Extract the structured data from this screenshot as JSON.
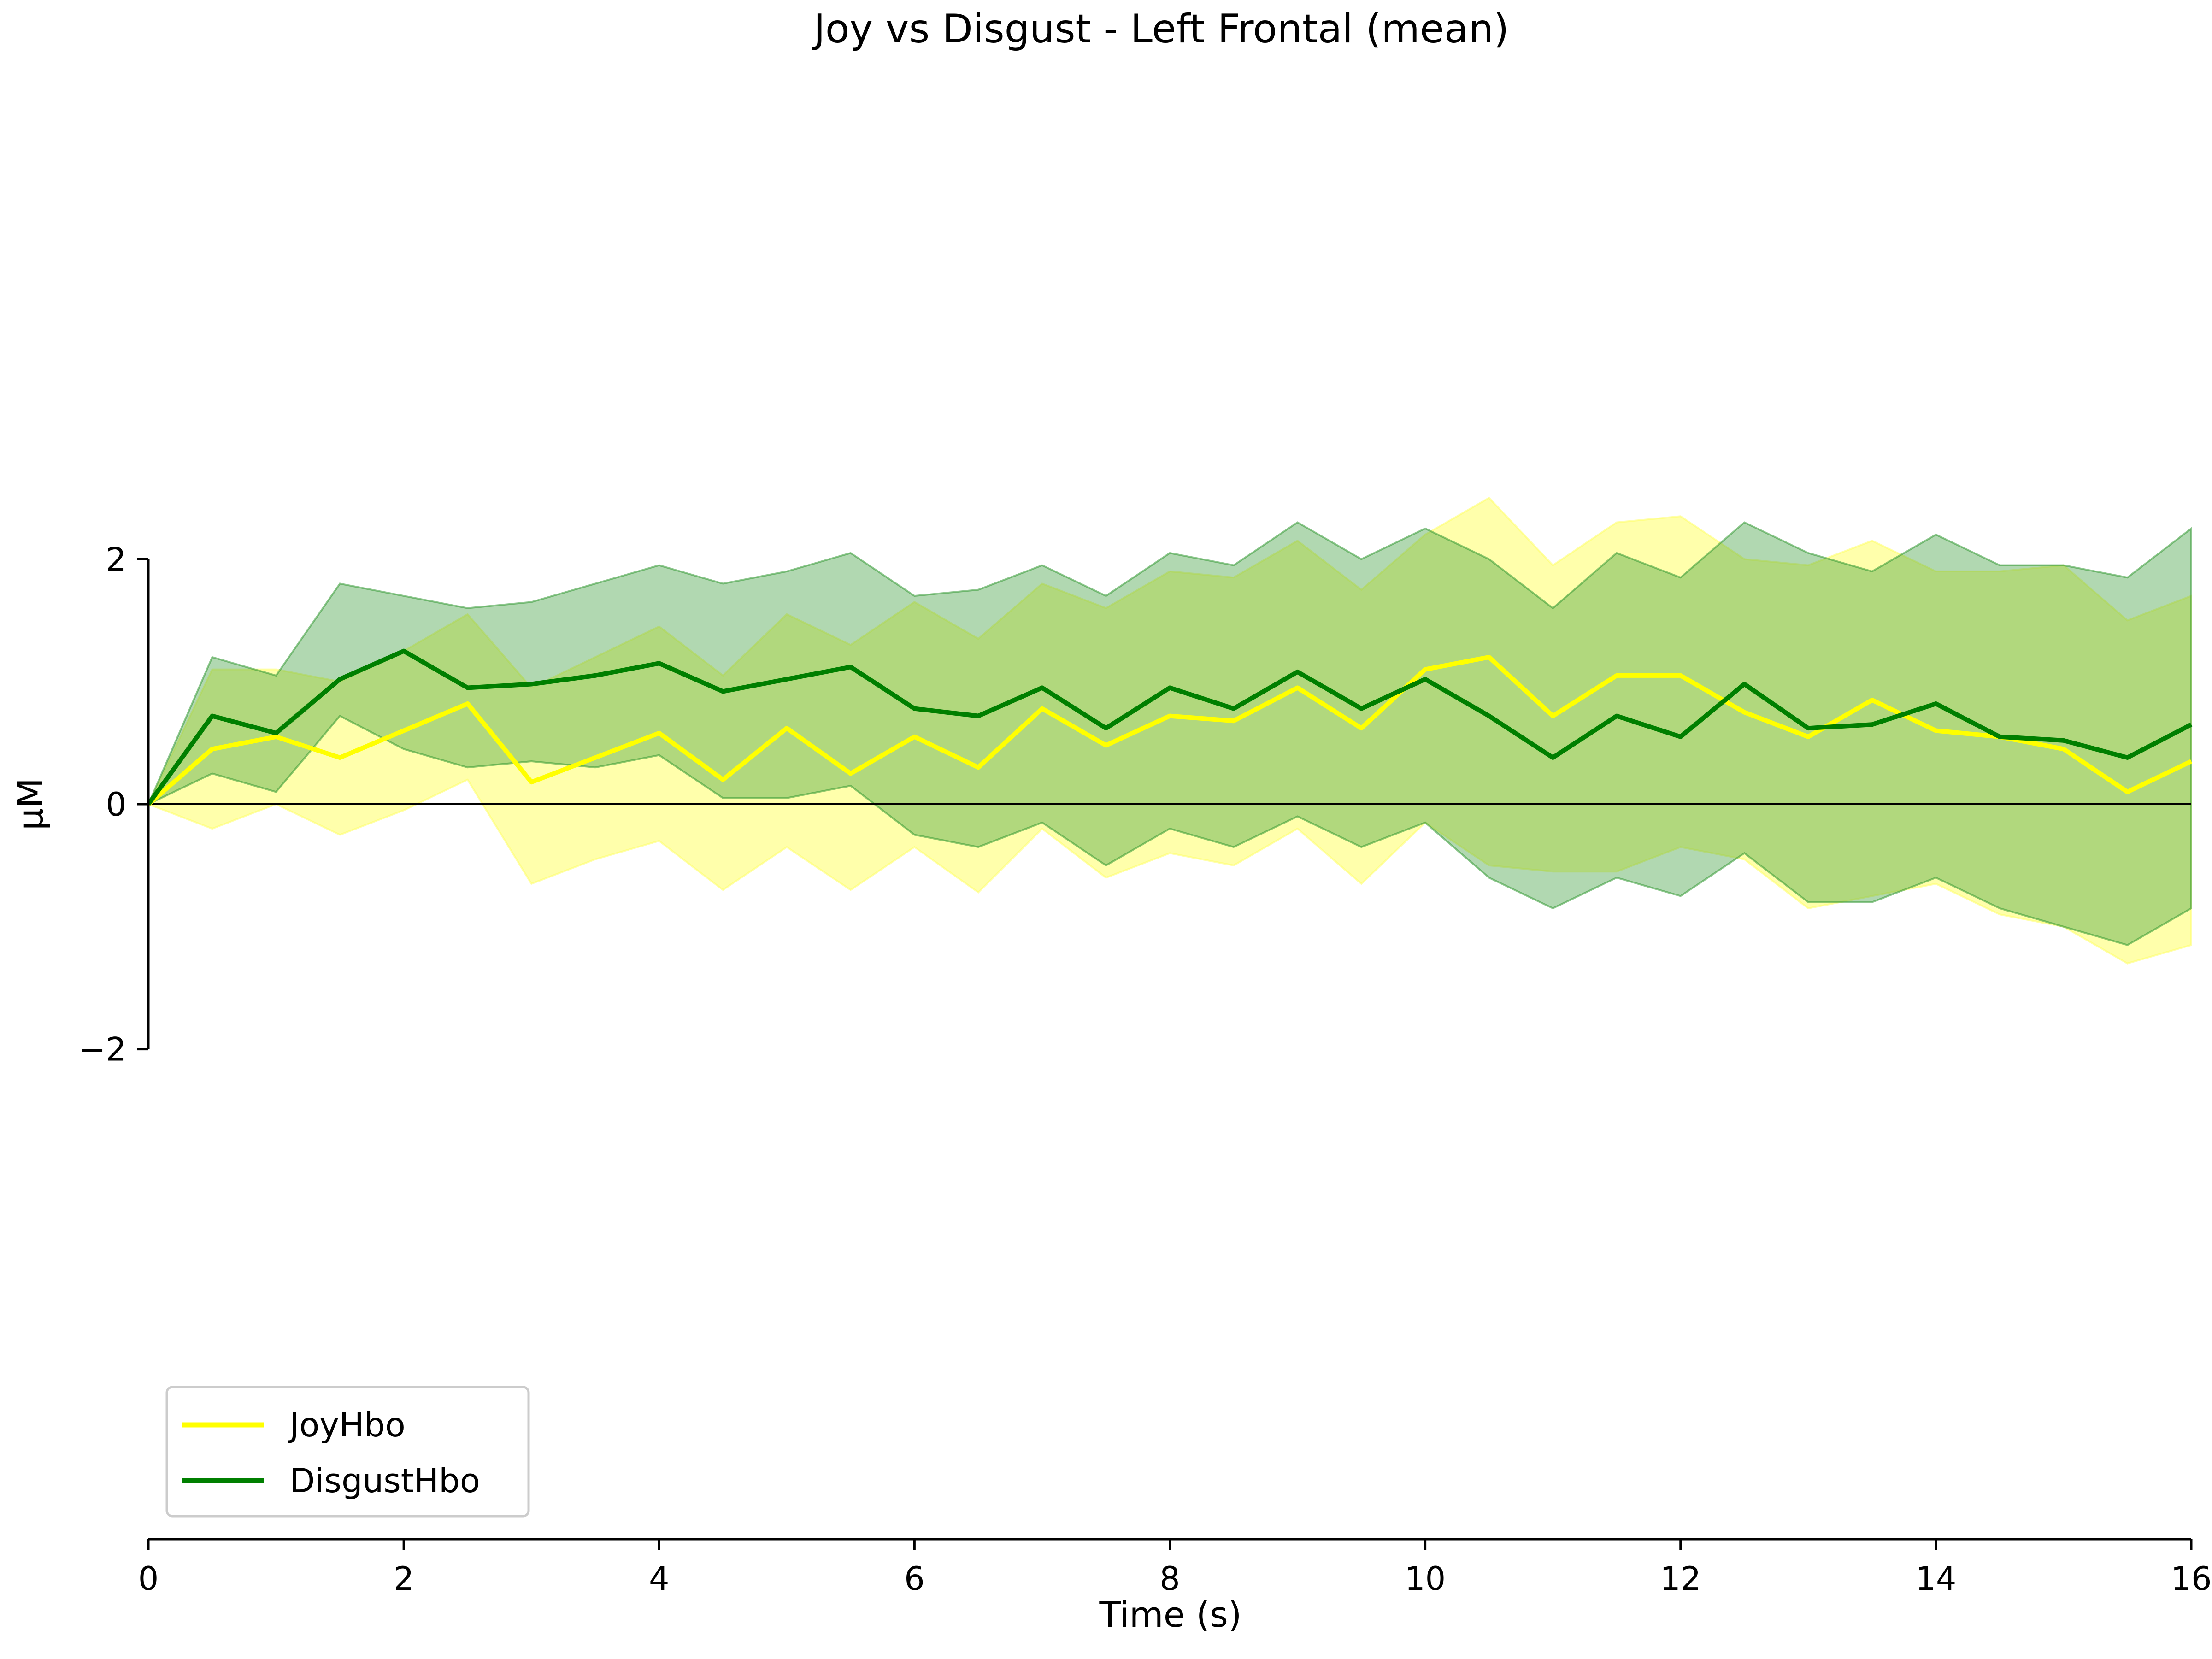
{
  "chart_data": {
    "type": "line",
    "title": "Joy vs Disgust - Left Frontal (mean)",
    "xlabel": "Time (s)",
    "ylabel": "µM",
    "xlim": [
      0,
      16
    ],
    "ylim": [
      -6,
      6
    ],
    "xticks": [
      0,
      2,
      4,
      6,
      8,
      10,
      12,
      14,
      16
    ],
    "xtick_labels": [
      "0",
      "2",
      "4",
      "6",
      "8",
      "10",
      "12",
      "14",
      "16"
    ],
    "yticks": [
      -2,
      0,
      2
    ],
    "ytick_labels": [
      "−2",
      "0",
      "2"
    ],
    "grid": false,
    "legend": "lower-left",
    "zero_line": true,
    "x": [
      0,
      0.5,
      1,
      1.5,
      2,
      2.5,
      3,
      3.5,
      4,
      4.5,
      5,
      5.5,
      6,
      6.5,
      7,
      7.5,
      8,
      8.5,
      9,
      9.5,
      10,
      10.5,
      11,
      11.5,
      12,
      12.5,
      13,
      13.5,
      14,
      14.5,
      15,
      15.5,
      16
    ],
    "series": [
      {
        "name": "JoyHbo",
        "color": "#ffff00",
        "band_color": "#ffff66",
        "values": [
          0,
          0.45,
          0.55,
          0.38,
          0.6,
          0.82,
          0.18,
          0.38,
          0.58,
          0.2,
          0.62,
          0.25,
          0.55,
          0.3,
          0.78,
          0.48,
          0.72,
          0.68,
          0.95,
          0.62,
          1.1,
          1.2,
          0.72,
          1.05,
          1.05,
          0.75,
          0.55,
          0.85,
          0.6,
          0.55,
          0.45,
          0.1,
          0.35
        ],
        "lower": [
          0,
          -0.2,
          0.0,
          -0.25,
          -0.05,
          0.2,
          -0.65,
          -0.45,
          -0.3,
          -0.7,
          -0.35,
          -0.7,
          -0.35,
          -0.72,
          -0.2,
          -0.6,
          -0.4,
          -0.5,
          -0.2,
          -0.65,
          -0.15,
          -0.5,
          -0.55,
          -0.55,
          -0.35,
          -0.45,
          -0.85,
          -0.75,
          -0.65,
          -0.9,
          -1.0,
          -1.3,
          -1.15
        ],
        "upper": [
          0,
          1.1,
          1.1,
          1.0,
          1.25,
          1.55,
          0.95,
          1.2,
          1.45,
          1.05,
          1.55,
          1.3,
          1.65,
          1.35,
          1.8,
          1.6,
          1.9,
          1.85,
          2.15,
          1.75,
          2.2,
          2.5,
          1.95,
          2.3,
          2.35,
          2.0,
          1.95,
          2.15,
          1.9,
          1.9,
          1.95,
          1.5,
          1.7
        ]
      },
      {
        "name": "DisgustHbo",
        "color": "#007f00",
        "band_color": "#339933",
        "values": [
          0,
          0.72,
          0.58,
          1.02,
          1.25,
          0.95,
          0.98,
          1.05,
          1.15,
          0.92,
          1.02,
          1.12,
          0.78,
          0.72,
          0.95,
          0.62,
          0.95,
          0.78,
          1.08,
          0.78,
          1.02,
          0.72,
          0.38,
          0.72,
          0.55,
          0.98,
          0.62,
          0.65,
          0.82,
          0.55,
          0.52,
          0.38,
          0.65
        ],
        "lower": [
          0,
          0.25,
          0.1,
          0.72,
          0.45,
          0.3,
          0.35,
          0.3,
          0.4,
          0.05,
          0.05,
          0.15,
          -0.25,
          -0.35,
          -0.15,
          -0.5,
          -0.2,
          -0.35,
          -0.1,
          -0.35,
          -0.15,
          -0.6,
          -0.85,
          -0.6,
          -0.75,
          -0.4,
          -0.8,
          -0.8,
          -0.6,
          -0.85,
          -1.0,
          -1.15,
          -0.85
        ],
        "upper": [
          0,
          1.2,
          1.05,
          1.8,
          1.7,
          1.6,
          1.65,
          1.8,
          1.95,
          1.8,
          1.9,
          2.05,
          1.7,
          1.75,
          1.95,
          1.7,
          2.05,
          1.95,
          2.3,
          2.0,
          2.25,
          2.0,
          1.6,
          2.05,
          1.85,
          2.3,
          2.05,
          1.9,
          2.2,
          1.95,
          1.95,
          1.85,
          2.25
        ]
      }
    ]
  }
}
